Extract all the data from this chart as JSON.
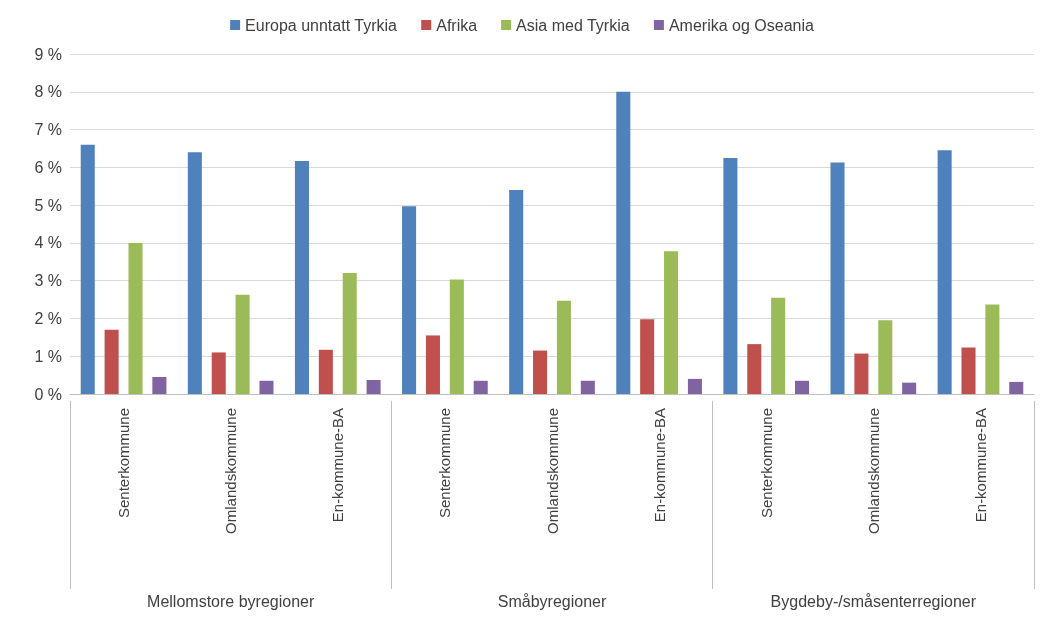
{
  "chart_data": {
    "type": "bar",
    "categories": [
      "Senterkommune",
      "Omlandskommune",
      "En-kommune-BA",
      "Senterkommune",
      "Omlandskommune",
      "En-kommune-BA",
      "Senterkommune",
      "Omlandskommune",
      "En-kommune-BA"
    ],
    "series": [
      {
        "name": "Europa unntatt Tyrkia",
        "color": "#4f81bd",
        "values": [
          6.6,
          6.4,
          6.17,
          4.97,
          5.4,
          8.0,
          6.25,
          6.13,
          6.45
        ]
      },
      {
        "name": "Afrika",
        "color": "#c0504d",
        "values": [
          1.7,
          1.1,
          1.17,
          1.55,
          1.15,
          1.98,
          1.32,
          1.07,
          1.23
        ]
      },
      {
        "name": "Asia med Tyrkia",
        "color": "#9bbb59",
        "values": [
          4.0,
          2.63,
          3.2,
          3.03,
          2.47,
          3.78,
          2.55,
          1.95,
          2.37
        ]
      },
      {
        "name": "Amerika og Oseania",
        "color": "#8064a2",
        "values": [
          0.45,
          0.35,
          0.37,
          0.35,
          0.35,
          0.4,
          0.35,
          0.3,
          0.32
        ]
      }
    ],
    "annotations": [
      "Mellomstore byregioner",
      "Småbyregioner",
      "Bygdeby-/småsenterregioner"
    ],
    "ylim": [
      0,
      9
    ],
    "yticks": [
      {
        "value": 0,
        "label": "0 %"
      },
      {
        "value": 1,
        "label": "1 %"
      },
      {
        "value": 2,
        "label": "2 %"
      },
      {
        "value": 3,
        "label": "3 %"
      },
      {
        "value": 4,
        "label": "4 %"
      },
      {
        "value": 5,
        "label": "5 %"
      },
      {
        "value": 6,
        "label": "6 %"
      },
      {
        "value": 7,
        "label": "7 %"
      },
      {
        "value": 8,
        "label": "8 %"
      },
      {
        "value": 9,
        "label": "9 %"
      }
    ],
    "grid": "y",
    "legend": "top"
  }
}
